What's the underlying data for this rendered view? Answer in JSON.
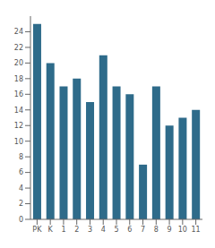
{
  "chart_data": {
    "type": "bar",
    "categories": [
      "PK",
      "K",
      "1",
      "2",
      "3",
      "4",
      "5",
      "6",
      "7",
      "8",
      "9",
      "10",
      "11"
    ],
    "values": [
      25,
      20,
      17,
      18,
      15,
      21,
      17,
      16,
      7,
      17,
      12,
      13,
      14
    ],
    "color": "#2e6b8a",
    "ylim": [
      0,
      26
    ],
    "yticks": [
      0,
      2,
      4,
      6,
      8,
      10,
      12,
      14,
      16,
      18,
      20,
      22,
      24
    ],
    "grid": false
  }
}
